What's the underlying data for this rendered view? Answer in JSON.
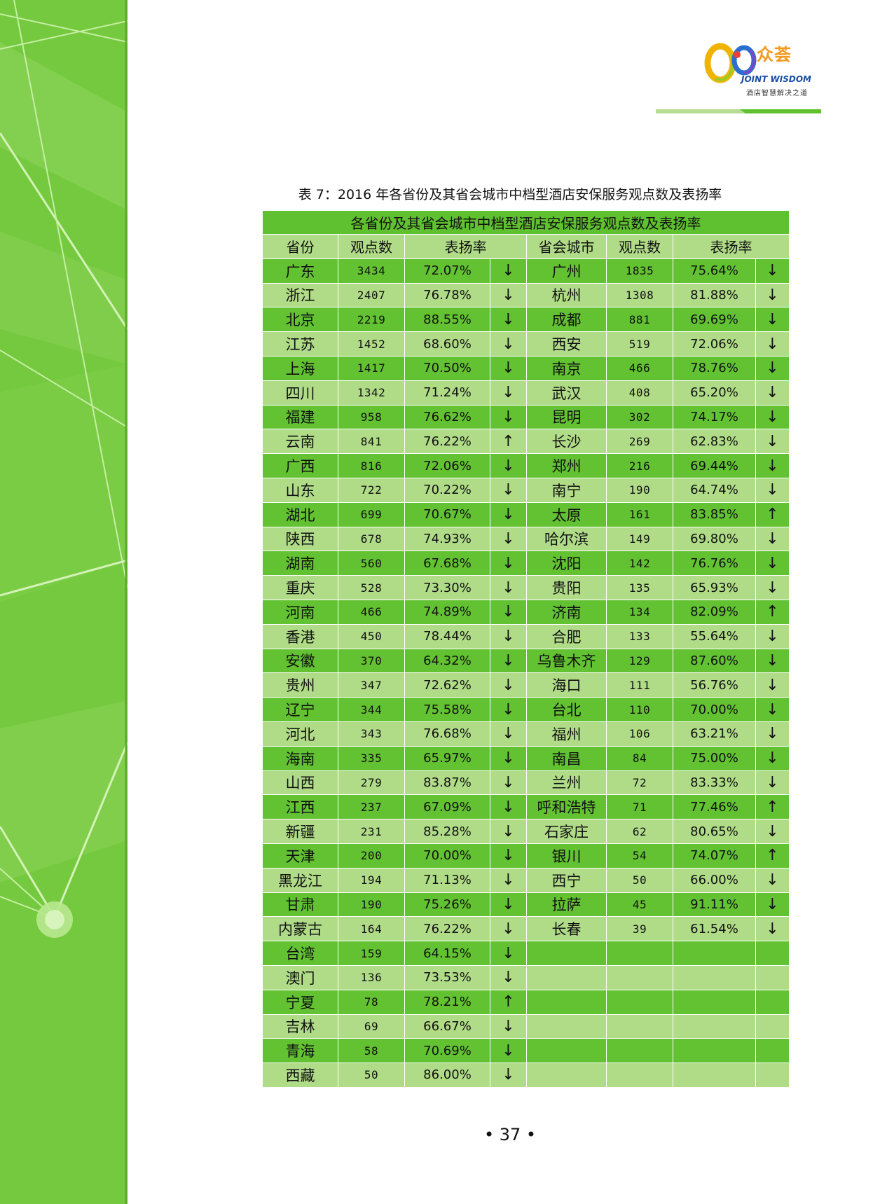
{
  "header": {
    "logo_brand": "众荟",
    "logo_en": "JOINT WISDOM",
    "logo_tagline": "酒店智慧解决之道"
  },
  "caption": "表 7：2016 年各省份及其省会城市中档型酒店安保服务观点数及表扬率",
  "table": {
    "title": "各省份及其省会城市中档型酒店安保服务观点数及表扬率",
    "headers": [
      "省份",
      "观点数",
      "表扬率",
      "省会城市",
      "观点数",
      "表扬率"
    ],
    "rows": [
      [
        "广东",
        "3434",
        "72.07%",
        "↓",
        "广州",
        "1835",
        "75.64%",
        "↓"
      ],
      [
        "浙江",
        "2407",
        "76.78%",
        "↓",
        "杭州",
        "1308",
        "81.88%",
        "↓"
      ],
      [
        "北京",
        "2219",
        "88.55%",
        "↓",
        "成都",
        "881",
        "69.69%",
        "↓"
      ],
      [
        "江苏",
        "1452",
        "68.60%",
        "↓",
        "西安",
        "519",
        "72.06%",
        "↓"
      ],
      [
        "上海",
        "1417",
        "70.50%",
        "↓",
        "南京",
        "466",
        "78.76%",
        "↓"
      ],
      [
        "四川",
        "1342",
        "71.24%",
        "↓",
        "武汉",
        "408",
        "65.20%",
        "↓"
      ],
      [
        "福建",
        "958",
        "76.62%",
        "↓",
        "昆明",
        "302",
        "74.17%",
        "↓"
      ],
      [
        "云南",
        "841",
        "76.22%",
        "↑",
        "长沙",
        "269",
        "62.83%",
        "↓"
      ],
      [
        "广西",
        "816",
        "72.06%",
        "↓",
        "郑州",
        "216",
        "69.44%",
        "↓"
      ],
      [
        "山东",
        "722",
        "70.22%",
        "↓",
        "南宁",
        "190",
        "64.74%",
        "↓"
      ],
      [
        "湖北",
        "699",
        "70.67%",
        "↓",
        "太原",
        "161",
        "83.85%",
        "↑"
      ],
      [
        "陕西",
        "678",
        "74.93%",
        "↓",
        "哈尔滨",
        "149",
        "69.80%",
        "↓"
      ],
      [
        "湖南",
        "560",
        "67.68%",
        "↓",
        "沈阳",
        "142",
        "76.76%",
        "↓"
      ],
      [
        "重庆",
        "528",
        "73.30%",
        "↓",
        "贵阳",
        "135",
        "65.93%",
        "↓"
      ],
      [
        "河南",
        "466",
        "74.89%",
        "↓",
        "济南",
        "134",
        "82.09%",
        "↑"
      ],
      [
        "香港",
        "450",
        "78.44%",
        "↓",
        "合肥",
        "133",
        "55.64%",
        "↓"
      ],
      [
        "安徽",
        "370",
        "64.32%",
        "↓",
        "乌鲁木齐",
        "129",
        "87.60%",
        "↓"
      ],
      [
        "贵州",
        "347",
        "72.62%",
        "↓",
        "海口",
        "111",
        "56.76%",
        "↓"
      ],
      [
        "辽宁",
        "344",
        "75.58%",
        "↓",
        "台北",
        "110",
        "70.00%",
        "↓"
      ],
      [
        "河北",
        "343",
        "76.68%",
        "↓",
        "福州",
        "106",
        "63.21%",
        "↓"
      ],
      [
        "海南",
        "335",
        "65.97%",
        "↓",
        "南昌",
        "84",
        "75.00%",
        "↓"
      ],
      [
        "山西",
        "279",
        "83.87%",
        "↓",
        "兰州",
        "72",
        "83.33%",
        "↓"
      ],
      [
        "江西",
        "237",
        "67.09%",
        "↓",
        "呼和浩特",
        "71",
        "77.46%",
        "↑"
      ],
      [
        "新疆",
        "231",
        "85.28%",
        "↓",
        "石家庄",
        "62",
        "80.65%",
        "↓"
      ],
      [
        "天津",
        "200",
        "70.00%",
        "↓",
        "银川",
        "54",
        "74.07%",
        "↑"
      ],
      [
        "黑龙江",
        "194",
        "71.13%",
        "↓",
        "西宁",
        "50",
        "66.00%",
        "↓"
      ],
      [
        "甘肃",
        "190",
        "75.26%",
        "↓",
        "拉萨",
        "45",
        "91.11%",
        "↓"
      ],
      [
        "内蒙古",
        "164",
        "76.22%",
        "↓",
        "长春",
        "39",
        "61.54%",
        "↓"
      ],
      [
        "台湾",
        "159",
        "64.15%",
        "↓",
        "",
        "",
        "",
        ""
      ],
      [
        "澳门",
        "136",
        "73.53%",
        "↓",
        "",
        "",
        "",
        ""
      ],
      [
        "宁夏",
        "78",
        "78.21%",
        "↑",
        "",
        "",
        "",
        ""
      ],
      [
        "吉林",
        "69",
        "66.67%",
        "↓",
        "",
        "",
        "",
        ""
      ],
      [
        "青海",
        "58",
        "70.69%",
        "↓",
        "",
        "",
        "",
        ""
      ],
      [
        "西藏",
        "50",
        "86.00%",
        "↓",
        "",
        "",
        "",
        ""
      ]
    ]
  },
  "page_number": "• 37 •",
  "colors": {
    "band": "#74c93e",
    "row_dark": "#62c232",
    "row_light": "#b0dc88",
    "accent_orange": "#f39a1e",
    "accent_blue": "#1a4fa3"
  }
}
